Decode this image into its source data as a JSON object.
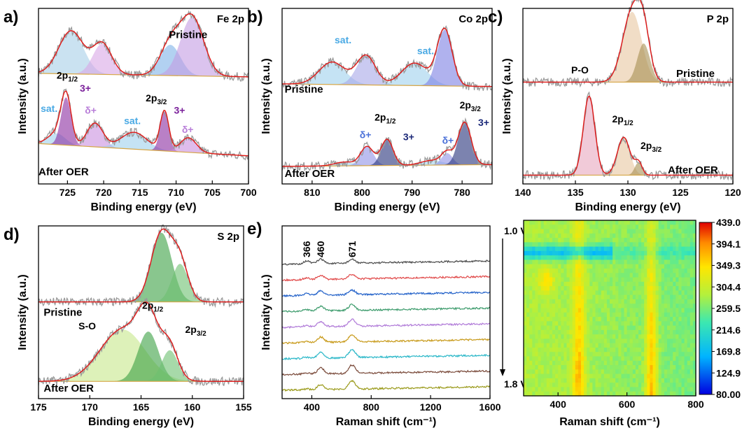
{
  "chart_data": [
    {
      "id": "a",
      "panel_label": "a)",
      "type": "line",
      "title": "Fe 2p",
      "xlabel": "Binding energy (eV)",
      "ylabel": "Intensity (a.u.)",
      "xlim": [
        729,
        700
      ],
      "xticks": [
        725,
        720,
        715,
        710,
        705,
        700
      ],
      "series": [
        {
          "name": "Pristine",
          "label": "Pristine",
          "label_at": [
            711,
            0.83
          ],
          "offset": 0.62,
          "amp": 0.35,
          "base": [
            0.02,
            -0.02
          ],
          "peaks": [
            {
              "c": 724.5,
              "h": 0.7,
              "w": 1.7,
              "color": "#a6cee8"
            },
            {
              "c": 720.2,
              "h": 0.5,
              "w": 1.3,
              "color": "#d9a7e6"
            },
            {
              "c": 710.8,
              "h": 0.5,
              "w": 1.4,
              "color": "#7fb3e8"
            },
            {
              "c": 707.8,
              "h": 0.95,
              "w": 1.6,
              "color": "#c39be2"
            }
          ]
        },
        {
          "name": "After OER",
          "label": "After OER",
          "label_at": [
            729,
            0.05
          ],
          "offset": 0.15,
          "amp": 0.32,
          "base": [
            0.16,
            0.02
          ],
          "peaks": [
            {
              "c": 726.5,
              "h": 0.2,
              "w": 1.2,
              "color": "#9fd0ec"
            },
            {
              "c": 725.2,
              "h": 0.85,
              "w": 0.7,
              "color": "#8a2ba0"
            },
            {
              "c": 721.2,
              "h": 0.42,
              "w": 1.1,
              "color": "#c98fe0"
            },
            {
              "c": 715.8,
              "h": 0.3,
              "w": 1.8,
              "color": "#9fd0ec"
            },
            {
              "c": 711.6,
              "h": 0.7,
              "w": 0.6,
              "color": "#8a2ba0"
            },
            {
              "c": 708.3,
              "h": 0.26,
              "w": 1.1,
              "color": "#c98fe0"
            }
          ]
        }
      ],
      "annotations": [
        {
          "text": "2p",
          "sub": "1/2",
          "at": [
            726.5,
            0.6
          ]
        },
        {
          "text": "3+",
          "at": [
            723.3,
            0.525
          ],
          "color": "#7a1f9a"
        },
        {
          "text": "sat.",
          "at": [
            728.7,
            0.41
          ],
          "color": "#49a9e4"
        },
        {
          "text": "δ+",
          "at": [
            722.6,
            0.4
          ],
          "color": "#b97fd9"
        },
        {
          "text": "sat.",
          "at": [
            717.2,
            0.34
          ],
          "color": "#49a9e4"
        },
        {
          "text": "2p",
          "sub": "3/2",
          "at": [
            714.2,
            0.47
          ]
        },
        {
          "text": "3+",
          "at": [
            710.3,
            0.4
          ],
          "color": "#7a1f9a"
        },
        {
          "text": "δ+",
          "at": [
            709.2,
            0.29
          ],
          "color": "#b97fd9"
        }
      ]
    },
    {
      "id": "b",
      "panel_label": "b)",
      "type": "line",
      "title": "Co 2p",
      "xlabel": "Binding energy (eV)",
      "ylabel": "Intensity (a.u.)",
      "xlim": [
        816,
        774
      ],
      "xticks": [
        810,
        800,
        790,
        780
      ],
      "series": [
        {
          "name": "Pristine",
          "label": "Pristine",
          "label_at": [
            815.5,
            0.52
          ],
          "offset": 0.57,
          "amp": 0.32,
          "base": [
            0.0,
            -0.03
          ],
          "peaks": [
            {
              "c": 806,
              "h": 0.4,
              "w": 2.6,
              "color": "#9fd0ec"
            },
            {
              "c": 799.2,
              "h": 0.52,
              "w": 1.9,
              "color": "#a7a6e8"
            },
            {
              "c": 789.5,
              "h": 0.4,
              "w": 2.6,
              "color": "#9fd0ec"
            },
            {
              "c": 783.5,
              "h": 1.0,
              "w": 1.5,
              "color": "#7c7fe3"
            }
          ]
        },
        {
          "name": "After OER",
          "label": "After OER",
          "label_at": [
            815.5,
            0.04
          ],
          "offset": 0.1,
          "amp": 0.27,
          "base": [
            0.0,
            0.02
          ],
          "peaks": [
            {
              "c": 803.5,
              "h": 0.08,
              "w": 2.0,
              "color": "#9fd0ec"
            },
            {
              "c": 799.0,
              "h": 0.4,
              "w": 1.3,
              "color": "#8f91e6"
            },
            {
              "c": 795.0,
              "h": 0.55,
              "w": 1.2,
              "color": "#24307a"
            },
            {
              "c": 786.0,
              "h": 0.1,
              "w": 2.2,
              "color": "#9fd0ec"
            },
            {
              "c": 783.0,
              "h": 0.25,
              "w": 1.1,
              "color": "#8f91e6"
            },
            {
              "c": 779.5,
              "h": 0.9,
              "w": 1.3,
              "color": "#24307a"
            }
          ]
        }
      ],
      "annotations": [
        {
          "text": "sat.",
          "at": [
            805.5,
            0.8
          ],
          "color": "#49a9e4"
        },
        {
          "text": "sat.",
          "at": [
            789.0,
            0.74
          ],
          "color": "#49a9e4"
        },
        {
          "text": "2p",
          "sub": "1/2",
          "at": [
            797.5,
            0.36
          ]
        },
        {
          "text": "δ+",
          "at": [
            800.5,
            0.26
          ],
          "color": "#4a70d8"
        },
        {
          "text": "3+",
          "at": [
            791.8,
            0.25
          ],
          "color": "#1b2878"
        },
        {
          "text": "δ+",
          "at": [
            784.0,
            0.23
          ],
          "color": "#4a70d8"
        },
        {
          "text": "2p",
          "sub": "3/2",
          "at": [
            780.5,
            0.43
          ]
        },
        {
          "text": "3+",
          "at": [
            776.8,
            0.33
          ],
          "color": "#1b2878"
        }
      ]
    },
    {
      "id": "c",
      "panel_label": "c)",
      "type": "line",
      "title": "P 2p",
      "xlabel": "Binding energy (eV)",
      "ylabel": "Intensity (a.u.)",
      "xlim": [
        140,
        120
      ],
      "xticks": [
        140,
        135,
        130,
        125,
        120
      ],
      "series": [
        {
          "name": "Pristine",
          "label": "Pristine",
          "label_at": [
            125.4,
            0.61
          ],
          "offset": 0.58,
          "amp": 0.4,
          "base": [
            0.0,
            0.0
          ],
          "peaks": [
            {
              "c": 129.6,
              "h": 1.0,
              "w": 0.9,
              "color": "#e8c6a0"
            },
            {
              "c": 128.5,
              "h": 0.55,
              "w": 0.6,
              "color": "#a68f52"
            }
          ]
        },
        {
          "name": "After OER",
          "label": "After OER",
          "label_at": [
            126.2,
            0.06
          ],
          "offset": 0.05,
          "amp": 0.45,
          "base": [
            0.0,
            0.0
          ],
          "peaks": [
            {
              "c": 133.7,
              "h": 1.0,
              "w": 0.55,
              "color": "#e8a6be"
            },
            {
              "c": 130.4,
              "h": 0.48,
              "w": 0.6,
              "color": "#e8c6a0"
            },
            {
              "c": 129.0,
              "h": 0.16,
              "w": 0.35,
              "color": "#a68f52"
            }
          ]
        }
      ],
      "annotations": [
        {
          "text": "P-O",
          "at": [
            135.4,
            0.63
          ]
        },
        {
          "text": "2p",
          "sub": "1/2",
          "at": [
            131.5,
            0.35
          ]
        },
        {
          "text": "2p",
          "sub": "3/2",
          "at": [
            128.8,
            0.2
          ]
        }
      ]
    },
    {
      "id": "d",
      "panel_label": "d)",
      "type": "line",
      "title": "S 2p",
      "xlabel": "Binding energy (eV)",
      "ylabel": "Intensity (a.u.)",
      "xlim": [
        175,
        155
      ],
      "xticks": [
        175,
        170,
        165,
        160,
        155
      ],
      "series": [
        {
          "name": "Pristine",
          "label": "Pristine",
          "label_at": [
            174.5,
            0.48
          ],
          "offset": 0.56,
          "amp": 0.4,
          "base": [
            0.0,
            0.0
          ],
          "peaks": [
            {
              "c": 163.0,
              "h": 1.0,
              "w": 1.0,
              "color": "#3aa043"
            },
            {
              "c": 161.2,
              "h": 0.55,
              "w": 0.8,
              "color": "#6cc06f"
            }
          ]
        },
        {
          "name": "After OER",
          "label": "After OER",
          "label_at": [
            174.5,
            0.04
          ],
          "offset": 0.1,
          "amp": 0.4,
          "base": [
            0.0,
            0.0
          ],
          "peaks": [
            {
              "c": 166.8,
              "h": 0.75,
              "w": 2.2,
              "color": "#c6e88a"
            },
            {
              "c": 164.3,
              "h": 0.72,
              "w": 1.0,
              "color": "#3aa043"
            },
            {
              "c": 162.2,
              "h": 0.45,
              "w": 0.8,
              "color": "#6cc06f"
            }
          ]
        }
      ],
      "annotations": [
        {
          "text": "S-O",
          "at": [
            171.1,
            0.4
          ]
        },
        {
          "text": "2p",
          "sub": "1/2",
          "at": [
            164.9,
            0.52
          ]
        },
        {
          "text": "2p",
          "sub": "3/2",
          "at": [
            160.7,
            0.38
          ]
        }
      ]
    },
    {
      "id": "e",
      "panel_label": "e)",
      "type": "line",
      "xlabel": "Raman shift (cm⁻¹)",
      "ylabel": "Intenaity (a.u.)",
      "xlim": [
        200,
        1600
      ],
      "xticks": [
        400,
        800,
        1200,
        1600
      ],
      "peak_labels": [
        "366",
        "460",
        "671"
      ],
      "peak_positions": [
        366,
        460,
        671
      ],
      "potential_labels": [
        "1.0 V",
        "1.8 V"
      ],
      "series": [
        {
          "color": "#4a4a4a",
          "peaks": [
            0.35,
            0.55,
            0.45
          ]
        },
        {
          "color": "#e04848",
          "peaks": [
            0.2,
            0.45,
            0.55
          ]
        },
        {
          "color": "#1f5fc8",
          "peaks": [
            0.2,
            0.5,
            0.55
          ]
        },
        {
          "color": "#3a9a6a",
          "peaks": [
            0.2,
            0.55,
            0.7
          ]
        },
        {
          "color": "#b07ad8",
          "peaks": [
            0.15,
            0.6,
            0.8
          ]
        },
        {
          "color": "#c89a1a",
          "peaks": [
            0.15,
            0.65,
            0.85
          ]
        },
        {
          "color": "#2ab7c8",
          "peaks": [
            0.15,
            0.7,
            0.95
          ]
        },
        {
          "color": "#7a4a3a",
          "peaks": [
            0.15,
            0.7,
            1.0
          ]
        },
        {
          "color": "#9a9a1a",
          "peaks": [
            0.1,
            0.6,
            1.0
          ]
        }
      ]
    },
    {
      "id": "f",
      "type": "heatmap",
      "xlabel": "Raman shift (cm⁻¹)",
      "xlim": [
        300,
        800
      ],
      "xticks": [
        400,
        600,
        800
      ],
      "colorbar": {
        "min": 80.0,
        "max": 439.0,
        "tick_labels": [
          "439.0",
          "394.1",
          "349.3",
          "304.4",
          "259.5",
          "214.6",
          "169.8",
          "124.9",
          "80.00"
        ]
      }
    }
  ]
}
